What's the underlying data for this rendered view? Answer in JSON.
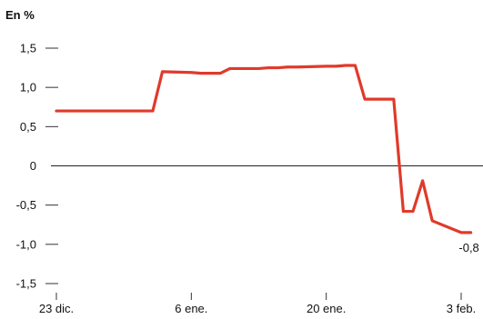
{
  "chart_data": {
    "type": "line",
    "unit_label": "En %",
    "x": [
      "2019-12-23",
      "2019-12-24",
      "2019-12-27",
      "2019-12-30",
      "2019-12-31",
      "2020-01-02",
      "2020-01-03",
      "2020-01-06",
      "2020-01-07",
      "2020-01-08",
      "2020-01-09",
      "2020-01-10",
      "2020-01-13",
      "2020-01-14",
      "2020-01-15",
      "2020-01-16",
      "2020-01-17",
      "2020-01-20",
      "2020-01-21",
      "2020-01-22",
      "2020-01-23",
      "2020-01-24",
      "2020-01-27",
      "2020-01-28",
      "2020-01-29",
      "2020-01-30",
      "2020-01-31",
      "2020-02-03",
      "2020-02-04"
    ],
    "series": [
      {
        "color": "#e03a2b",
        "values": [
          0.7,
          0.7,
          0.7,
          0.7,
          0.7,
          0.7,
          1.2,
          1.19,
          1.18,
          1.18,
          1.18,
          1.24,
          1.24,
          1.25,
          1.25,
          1.26,
          1.26,
          1.27,
          1.27,
          1.28,
          1.28,
          0.85,
          0.85,
          -0.58,
          -0.58,
          -0.19,
          -0.7,
          -0.85,
          -0.85
        ]
      }
    ],
    "y_ticks": [
      {
        "value": 1.5,
        "label": "1,5"
      },
      {
        "value": 1.0,
        "label": "1,0"
      },
      {
        "value": 0.5,
        "label": "0,5"
      },
      {
        "value": 0.0,
        "label": "0"
      },
      {
        "value": -0.5,
        "label": "-0,5"
      },
      {
        "value": -1.0,
        "label": "-1,0"
      },
      {
        "value": -1.5,
        "label": "-1,5"
      }
    ],
    "x_ticks": [
      {
        "value": "2019-12-23",
        "label": "23 dic."
      },
      {
        "value": "2020-01-06",
        "label": "6 ene."
      },
      {
        "value": "2020-01-20",
        "label": "20 ene."
      },
      {
        "value": "2020-02-03",
        "label": "3 feb."
      }
    ],
    "ylim": [
      -1.5,
      1.5
    ],
    "xlim": [
      "2019-12-23",
      "2020-02-04"
    ],
    "end_label": "-0,8",
    "zero_line": true,
    "grid": false,
    "legend": false
  }
}
